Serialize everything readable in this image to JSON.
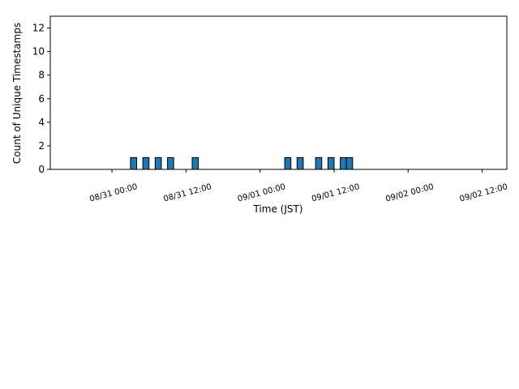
{
  "chart_data": {
    "type": "histogram",
    "x_label": "Time (JST)",
    "y_label": "Count of Unique Timestamps",
    "color": "#1f77b4",
    "edge_color": "#000000",
    "bins": [
      "08/30 15:00",
      "08/30 16:00",
      "08/30 17:00",
      "08/30 18:00",
      "08/30 19:00",
      "08/30 20:00",
      "08/30 21:00",
      "08/30 22:00",
      "08/30 23:00",
      "08/31 00:00",
      "08/31 01:00",
      "08/31 02:00",
      "08/31 03:00",
      "08/31 04:00",
      "08/31 05:00",
      "08/31 06:00",
      "08/31 07:00",
      "08/31 08:00",
      "08/31 09:00",
      "08/31 10:00",
      "08/31 11:00",
      "08/31 12:00",
      "08/31 13:00",
      "08/31 14:00",
      "08/31 15:00",
      "08/31 16:00",
      "08/31 17:00",
      "08/31 18:00",
      "08/31 19:00",
      "08/31 20:00",
      "08/31 21:00",
      "08/31 22:00",
      "08/31 23:00",
      "09/01 00:00",
      "09/01 01:00",
      "09/01 02:00",
      "09/01 03:00",
      "09/01 04:00",
      "09/01 05:00",
      "09/01 06:00",
      "09/01 07:00",
      "09/01 08:00",
      "09/01 09:00",
      "09/01 10:00",
      "09/01 11:00",
      "09/01 12:00",
      "09/01 13:00",
      "09/01 14:00",
      "09/01 15:00",
      "09/01 16:00",
      "09/01 17:00",
      "09/01 18:00",
      "09/01 19:00",
      "09/01 20:00",
      "09/01 21:00",
      "09/01 22:00",
      "09/01 23:00",
      "09/02 00:00",
      "09/02 01:00",
      "09/02 02:00",
      "09/02 03:00",
      "09/02 04:00",
      "09/02 05:00",
      "09/02 06:00",
      "09/02 07:00",
      "09/02 08:00",
      "09/02 09:00",
      "09/02 10:00",
      "09/02 11:00",
      "09/02 12:00",
      "09/02 13:00",
      "09/02 14:00"
    ],
    "counts": [
      0,
      0,
      0,
      0,
      0,
      0,
      0,
      0,
      0,
      0,
      0,
      0,
      1,
      0,
      1,
      0,
      1,
      0,
      1,
      0,
      0,
      0,
      1,
      0,
      0,
      0,
      0,
      0,
      0,
      0,
      0,
      0,
      0,
      0,
      0,
      0,
      0,
      1,
      0,
      1,
      0,
      0,
      1,
      0,
      1,
      0,
      1,
      1,
      0,
      0,
      0,
      0,
      0,
      0,
      0,
      0,
      0,
      0,
      0,
      0,
      0,
      0,
      0,
      0,
      0,
      0,
      0,
      0,
      0,
      0,
      0
    ],
    "xlim": [
      "08/30 14:00",
      "09/02 16:00"
    ],
    "xticks": [
      "08/31 00:00",
      "08/31 12:00",
      "09/01 00:00",
      "09/01 12:00",
      "09/02 00:00",
      "09/02 12:00"
    ],
    "ylim": [
      0,
      13
    ],
    "yticks": [
      0,
      2,
      4,
      6,
      8,
      10,
      12
    ]
  }
}
